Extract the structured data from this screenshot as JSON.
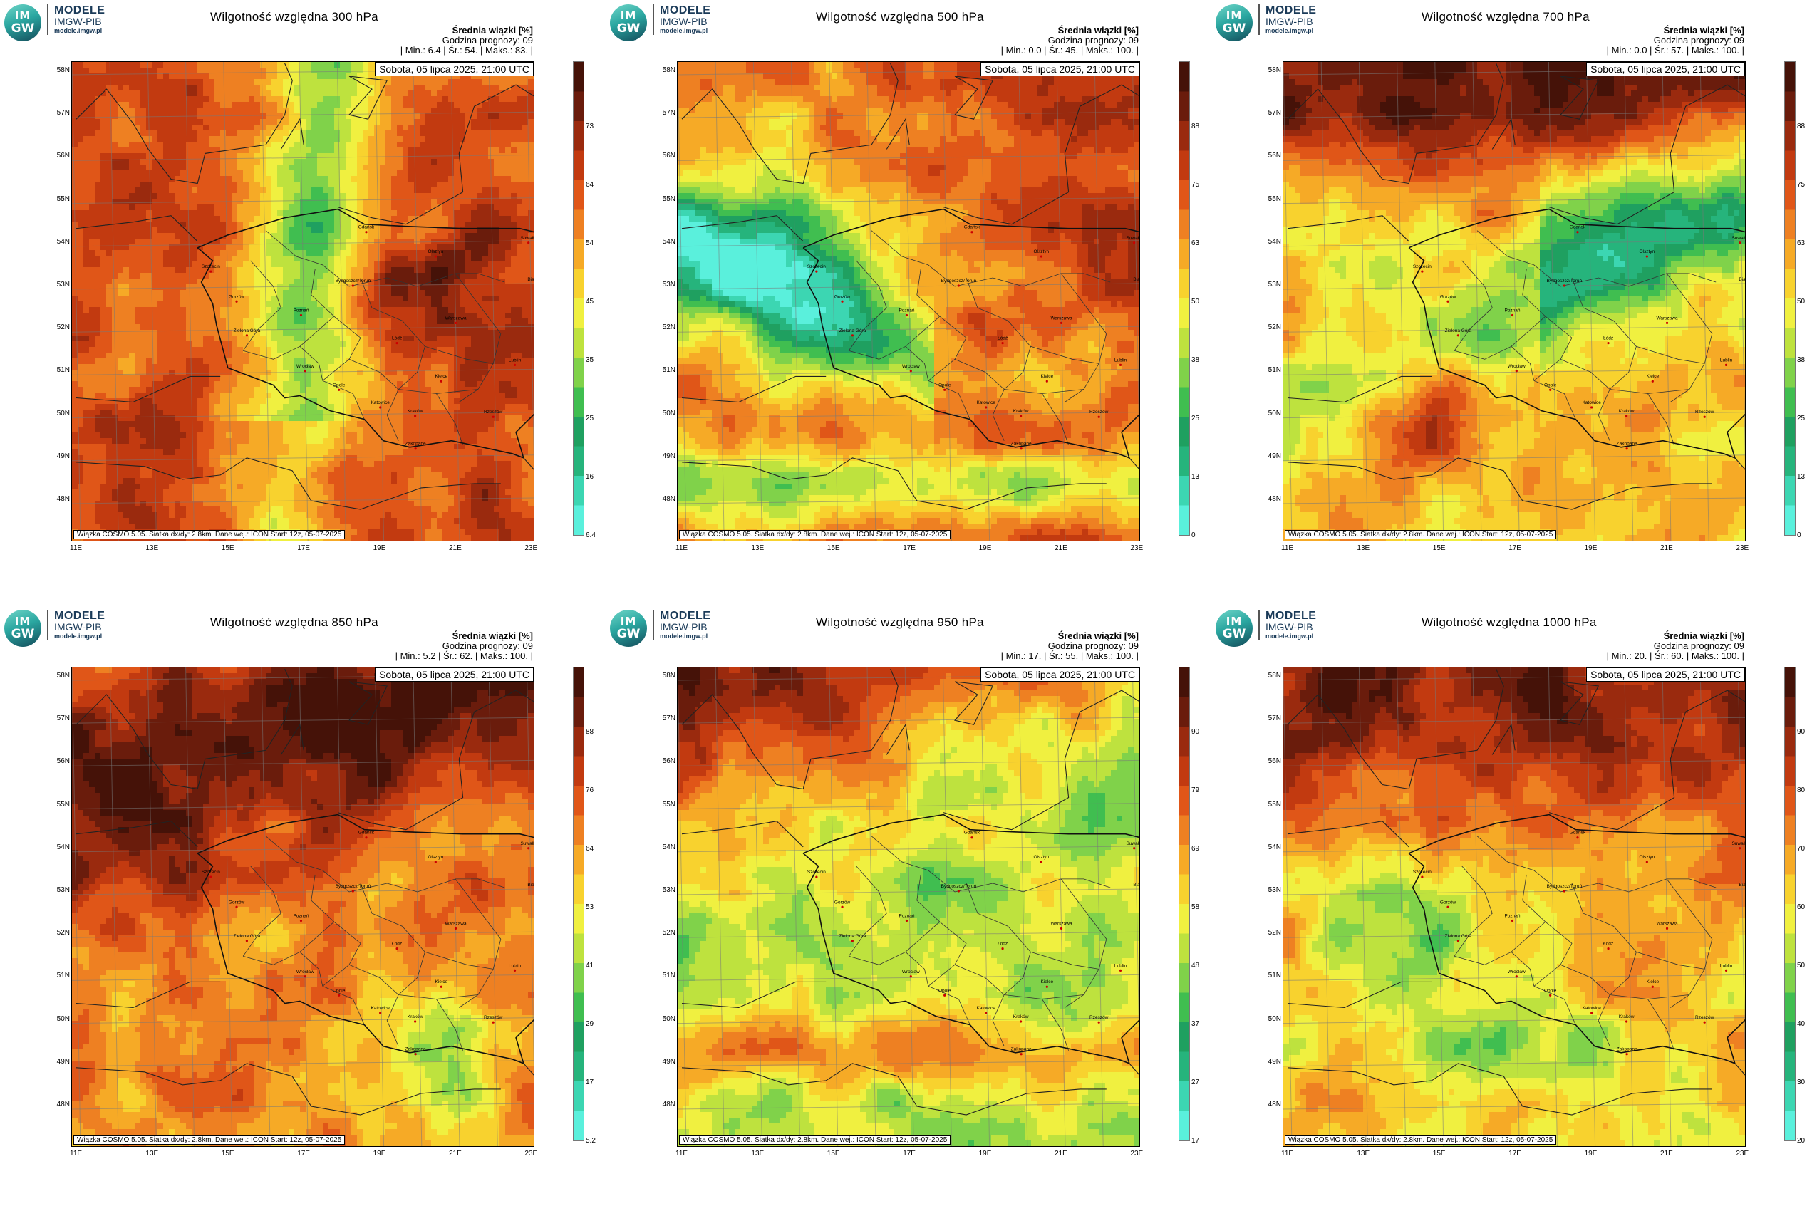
{
  "panels": [
    {
      "logo": {
        "circle1": "IM",
        "circle2": "GW",
        "name": "MODELE",
        "org": "IMGW-PIB",
        "site": "modele.imgw.pl"
      },
      "title": "Wilgotność względna 300 hPa",
      "subtitle": "Średnia wiązki [%]",
      "forecast": "Godzina prognozy: 09",
      "stats": "| Min.:      6.4 | Śr.:      54. | Maks.:      83. |",
      "date": "Sobota, 05 lipca 2025, 21:00 UTC",
      "footer": "Wiązka COSMO 5.05. Siatka dx/dy: 2.8km. Dane wej.: ICON Start: 12z, 05-07-2025",
      "ticks": [
        "6.4",
        "16",
        "25",
        "35",
        "45",
        "54",
        "64",
        "73"
      ],
      "scheme": "r300"
    },
    {
      "logo": {
        "circle1": "IM",
        "circle2": "GW",
        "name": "MODELE",
        "org": "IMGW-PIB",
        "site": "modele.imgw.pl"
      },
      "title": "Wilgotność względna 500 hPa",
      "subtitle": "Średnia wiązki [%]",
      "forecast": "Godzina prognozy: 09",
      "stats": "| Min.:      0.0 | Śr.:      45. | Maks.:     100. |",
      "date": "Sobota, 05 lipca 2025, 21:00 UTC",
      "footer": "Wiązka COSMO 5.05. Siatka dx/dy: 2.8km. Dane wej.: ICON Start: 12z, 05-07-2025",
      "ticks": [
        "0",
        "13",
        "25",
        "38",
        "50",
        "63",
        "75",
        "88"
      ],
      "scheme": "r500"
    },
    {
      "logo": {
        "circle1": "IM",
        "circle2": "GW",
        "name": "MODELE",
        "org": "IMGW-PIB",
        "site": "modele.imgw.pl"
      },
      "title": "Wilgotność względna 700 hPa",
      "subtitle": "Średnia wiązki [%]",
      "forecast": "Godzina prognozy: 09",
      "stats": "| Min.:      0.0 | Śr.:      57. | Maks.:     100. |",
      "date": "Sobota, 05 lipca 2025, 21:00 UTC",
      "footer": "Wiązka COSMO 5.05. Siatka dx/dy: 2.8km. Dane wej.: ICON Start: 12z, 05-07-2025",
      "ticks": [
        "0",
        "13",
        "25",
        "38",
        "50",
        "63",
        "75",
        "88"
      ],
      "scheme": "r700"
    },
    {
      "logo": {
        "circle1": "IM",
        "circle2": "GW",
        "name": "MODELE",
        "org": "IMGW-PIB",
        "site": "modele.imgw.pl"
      },
      "title": "Wilgotność względna 850 hPa",
      "subtitle": "Średnia wiązki [%]",
      "forecast": "Godzina prognozy: 09",
      "stats": "| Min.:      5.2 | Śr.:      62. | Maks.:     100. |",
      "date": "Sobota, 05 lipca 2025, 21:00 UTC",
      "footer": "Wiązka COSMO 5.05. Siatka dx/dy: 2.8km. Dane wej.: ICON Start: 12z, 05-07-2025",
      "ticks": [
        "5.2",
        "17",
        "29",
        "41",
        "53",
        "64",
        "76",
        "88"
      ],
      "scheme": "r850"
    },
    {
      "logo": {
        "circle1": "IM",
        "circle2": "GW",
        "name": "MODELE",
        "org": "IMGW-PIB",
        "site": "modele.imgw.pl"
      },
      "title": "Wilgotność względna 950 hPa",
      "subtitle": "Średnia wiązki [%]",
      "forecast": "Godzina prognozy: 09",
      "stats": "| Min.:      17. | Śr.:      55. | Maks.:     100. |",
      "date": "Sobota, 05 lipca 2025, 21:00 UTC",
      "footer": "Wiązka COSMO 5.05. Siatka dx/dy: 2.8km. Dane wej.: ICON Start: 12z, 05-07-2025",
      "ticks": [
        "17",
        "27",
        "37",
        "48",
        "58",
        "69",
        "79",
        "90"
      ],
      "scheme": "r950"
    },
    {
      "logo": {
        "circle1": "IM",
        "circle2": "GW",
        "name": "MODELE",
        "org": "IMGW-PIB",
        "site": "modele.imgw.pl"
      },
      "title": "Wilgotność względna 1000 hPa",
      "subtitle": "Średnia wiązki [%]",
      "forecast": "Godzina prognozy: 09",
      "stats": "| Min.:      20. | Śr.:      60. | Maks.:     100. |",
      "date": "Sobota, 05 lipca 2025, 21:00 UTC",
      "footer": "Wiązka COSMO 5.05. Siatka dx/dy: 2.8km. Dane wej.: ICON Start: 12z, 05-07-2025",
      "ticks": [
        "20",
        "30",
        "40",
        "50",
        "60",
        "70",
        "80",
        "90"
      ],
      "scheme": "r1000"
    }
  ],
  "lat_labels": [
    "58N",
    "57N",
    "56N",
    "55N",
    "54N",
    "53N",
    "52N",
    "51N",
    "50N",
    "49N",
    "48N"
  ],
  "lon_labels": [
    "11E",
    "13E",
    "15E",
    "17E",
    "19E",
    "21E",
    "23E"
  ],
  "cities": [
    {
      "name": "Gdańsk",
      "lon": 18.65,
      "lat": 54.35
    },
    {
      "name": "Olsztyn",
      "lon": 20.48,
      "lat": 53.78
    },
    {
      "name": "Suwałki",
      "lon": 22.93,
      "lat": 54.1
    },
    {
      "name": "Białystok",
      "lon": 23.15,
      "lat": 53.13
    },
    {
      "name": "Szczecin",
      "lon": 14.55,
      "lat": 53.43
    },
    {
      "name": "Bydgoszcz/Toruń",
      "lon": 18.3,
      "lat": 53.1
    },
    {
      "name": "Gorzów",
      "lon": 15.23,
      "lat": 52.73
    },
    {
      "name": "Poznań",
      "lon": 16.93,
      "lat": 52.41
    },
    {
      "name": "Warszawa",
      "lon": 21.01,
      "lat": 52.23
    },
    {
      "name": "Łódź",
      "lon": 19.46,
      "lat": 51.76
    },
    {
      "name": "Zielona Góra",
      "lon": 15.5,
      "lat": 51.94
    },
    {
      "name": "Lublin",
      "lon": 22.57,
      "lat": 51.25
    },
    {
      "name": "Wrocław",
      "lon": 17.04,
      "lat": 51.11
    },
    {
      "name": "Kielce",
      "lon": 20.63,
      "lat": 50.87
    },
    {
      "name": "Opole",
      "lon": 17.93,
      "lat": 50.67
    },
    {
      "name": "Rzeszów",
      "lon": 22.0,
      "lat": 50.04
    },
    {
      "name": "Katowice",
      "lon": 19.02,
      "lat": 50.26
    },
    {
      "name": "Kraków",
      "lon": 19.94,
      "lat": 50.06
    },
    {
      "name": "Zakopane",
      "lon": 19.95,
      "lat": 49.3
    }
  ],
  "colors": {
    "palette": [
      "#5af0dc",
      "#3cd6b2",
      "#26b47c",
      "#1fa060",
      "#40be50",
      "#80d24a",
      "#bee23e",
      "#f0f040",
      "#f8d22e",
      "#f6aa26",
      "#ee8022",
      "#e05618",
      "#c23a10",
      "#9a2a0e",
      "#6a1c0c",
      "#451208"
    ]
  }
}
